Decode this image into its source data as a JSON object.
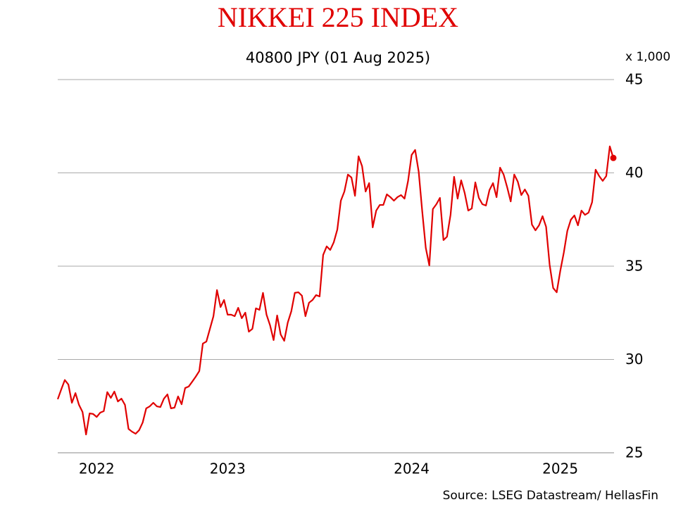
{
  "chart_data": {
    "type": "line",
    "title": "NIKKEI 225 INDEX",
    "subtitle": "40800 JPY (01 Aug 2025)",
    "y_unit_label": "x 1,000",
    "source": "Source: LSEG Datastream/ HellasFin",
    "color": "#e00000",
    "grid": true,
    "ylim": [
      25,
      45
    ],
    "yticks": [
      25,
      30,
      35,
      40,
      45
    ],
    "categories": [
      null,
      null,
      null,
      null,
      null,
      null,
      null,
      null,
      null,
      null,
      null,
      "2022",
      null,
      null,
      null,
      null,
      null,
      null,
      null,
      null,
      null,
      null,
      null,
      null,
      null,
      null,
      null,
      null,
      null,
      null,
      null,
      null,
      null,
      null,
      null,
      null,
      null,
      null,
      null,
      null,
      null,
      null,
      null,
      null,
      null,
      null,
      null,
      null,
      "2023",
      null,
      null,
      null,
      null,
      null,
      null,
      null,
      null,
      null,
      null,
      null,
      null,
      null,
      null,
      null,
      null,
      null,
      null,
      null,
      null,
      null,
      null,
      null,
      null,
      null,
      null,
      null,
      null,
      null,
      null,
      null,
      null,
      null,
      null,
      null,
      null,
      null,
      null,
      null,
      null,
      null,
      null,
      null,
      null,
      null,
      null,
      null,
      null,
      null,
      null,
      null,
      "2024",
      null,
      null,
      null,
      null,
      null,
      null,
      null,
      null,
      null,
      null,
      null,
      null,
      null,
      null,
      null,
      null,
      null,
      null,
      null,
      null,
      null,
      null,
      null,
      null,
      null,
      null,
      null,
      null,
      null,
      null,
      null,
      null,
      null,
      null,
      null,
      null,
      null,
      null,
      null,
      null,
      null,
      "2025",
      null,
      null,
      null,
      null,
      null,
      null,
      null,
      null,
      null,
      null,
      null,
      null,
      null,
      null,
      null
    ],
    "values": [
      27.87,
      28.4,
      28.9,
      28.66,
      27.68,
      28.2,
      27.57,
      27.19,
      25.98,
      27.11,
      27.08,
      26.92,
      27.15,
      27.23,
      28.25,
      27.94,
      28.28,
      27.75,
      27.9,
      27.57,
      26.28,
      26.13,
      26.02,
      26.21,
      26.62,
      27.38,
      27.49,
      27.68,
      27.49,
      27.45,
      27.9,
      28.13,
      27.38,
      27.42,
      28.02,
      27.6,
      28.47,
      28.55,
      28.81,
      29.08,
      29.38,
      30.85,
      30.96,
      31.64,
      32.32,
      33.72,
      32.81,
      33.19,
      32.4,
      32.4,
      32.32,
      32.77,
      32.21,
      32.51,
      31.49,
      31.64,
      32.74,
      32.66,
      33.57,
      32.4,
      31.83,
      31.04,
      32.36,
      31.34,
      31.0,
      31.98,
      32.58,
      33.57,
      33.6,
      33.42,
      32.32,
      33.04,
      33.19,
      33.45,
      33.38,
      35.6,
      36.06,
      35.87,
      36.28,
      36.96,
      38.51,
      39.0,
      39.91,
      39.75,
      38.77,
      40.89,
      40.36,
      39.0,
      39.45,
      37.08,
      37.98,
      38.28,
      38.28,
      38.85,
      38.7,
      38.51,
      38.7,
      38.81,
      38.62,
      39.57,
      40.96,
      41.23,
      40.06,
      37.94,
      35.98,
      35.04,
      38.06,
      38.32,
      38.66,
      36.4,
      36.58,
      37.75,
      39.79,
      38.62,
      39.6,
      38.92,
      37.98,
      38.09,
      39.49,
      38.66,
      38.32,
      38.25,
      39.08,
      39.45,
      38.7,
      40.28,
      39.91,
      39.23,
      38.47,
      39.91,
      39.53,
      38.81,
      39.11,
      38.77,
      37.23,
      36.92,
      37.19,
      37.68,
      37.11,
      35.08,
      33.83,
      33.6,
      34.74,
      35.72,
      36.89,
      37.49,
      37.72,
      37.19,
      37.98,
      37.75,
      37.87,
      38.43,
      40.17,
      39.83,
      39.57,
      39.83,
      41.42,
      40.8
    ]
  }
}
